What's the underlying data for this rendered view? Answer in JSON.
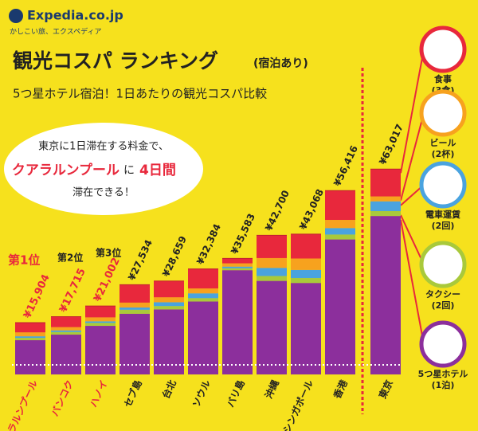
{
  "logo": "Expedia.co.jp",
  "tagline": "かしこい旅、エクスペディア",
  "callout": {
    "line1": "東京に1日滞在する料金で、",
    "city": "クアラルンプール",
    "particle": "に",
    "days": "4日間",
    "line3": "滞在できる！"
  },
  "ranks": [
    "第1位",
    "第2位",
    "第3位"
  ],
  "chart_data": {
    "type": "stacked-bar",
    "title": "観光コスパ ランキング",
    "title_note": "(宿泊あり)",
    "subtitle": "5つ星ホテル宿泊！1日あたりの観光コスパ比較",
    "categories": [
      "クアラルンプール",
      "バンコク",
      "ハノイ",
      "セブ島",
      "台北",
      "ソウル",
      "バリ島",
      "沖縄",
      "シンガポール",
      "香港",
      "東京"
    ],
    "totals": [
      15904,
      17715,
      21002,
      27534,
      28659,
      32384,
      35583,
      42700,
      43068,
      56416,
      63017
    ],
    "total_labels": [
      "¥15,904",
      "¥17,715",
      "¥21,002",
      "¥27,534",
      "¥28,659",
      "¥32,384",
      "¥35,583",
      "¥42,700",
      "¥43,068",
      "¥56,416",
      "¥63,017"
    ],
    "series": [
      {
        "name": "5つ星ホテル",
        "note": "(1泊)",
        "color": "#8c2f9c",
        "values": [
          10504,
          12215,
          14902,
          18634,
          19959,
          22384,
          31983,
          28700,
          28068,
          41416,
          48617
        ]
      },
      {
        "name": "タクシー",
        "note": "(2回)",
        "color": "#a9c93b",
        "values": [
          700,
          800,
          900,
          1200,
          1000,
          1000,
          600,
          1500,
          1500,
          1500,
          1500
        ]
      },
      {
        "name": "電車運賃",
        "note": "(2回)",
        "color": "#4aa3df",
        "values": [
          500,
          500,
          500,
          700,
          1200,
          1500,
          500,
          2500,
          2500,
          2000,
          3000
        ]
      },
      {
        "name": "ビール",
        "note": "(2杯)",
        "color": "#f7a21e",
        "values": [
          1200,
          1000,
          1200,
          1500,
          1500,
          1500,
          1000,
          3000,
          3500,
          2500,
          1500
        ]
      },
      {
        "name": "食事",
        "note": "(3食)",
        "color": "#e8283c",
        "values": [
          3000,
          3200,
          3500,
          5500,
          5000,
          6000,
          1500,
          7000,
          7500,
          9000,
          8400
        ]
      }
    ],
    "ylim": [
      0,
      66000
    ]
  }
}
